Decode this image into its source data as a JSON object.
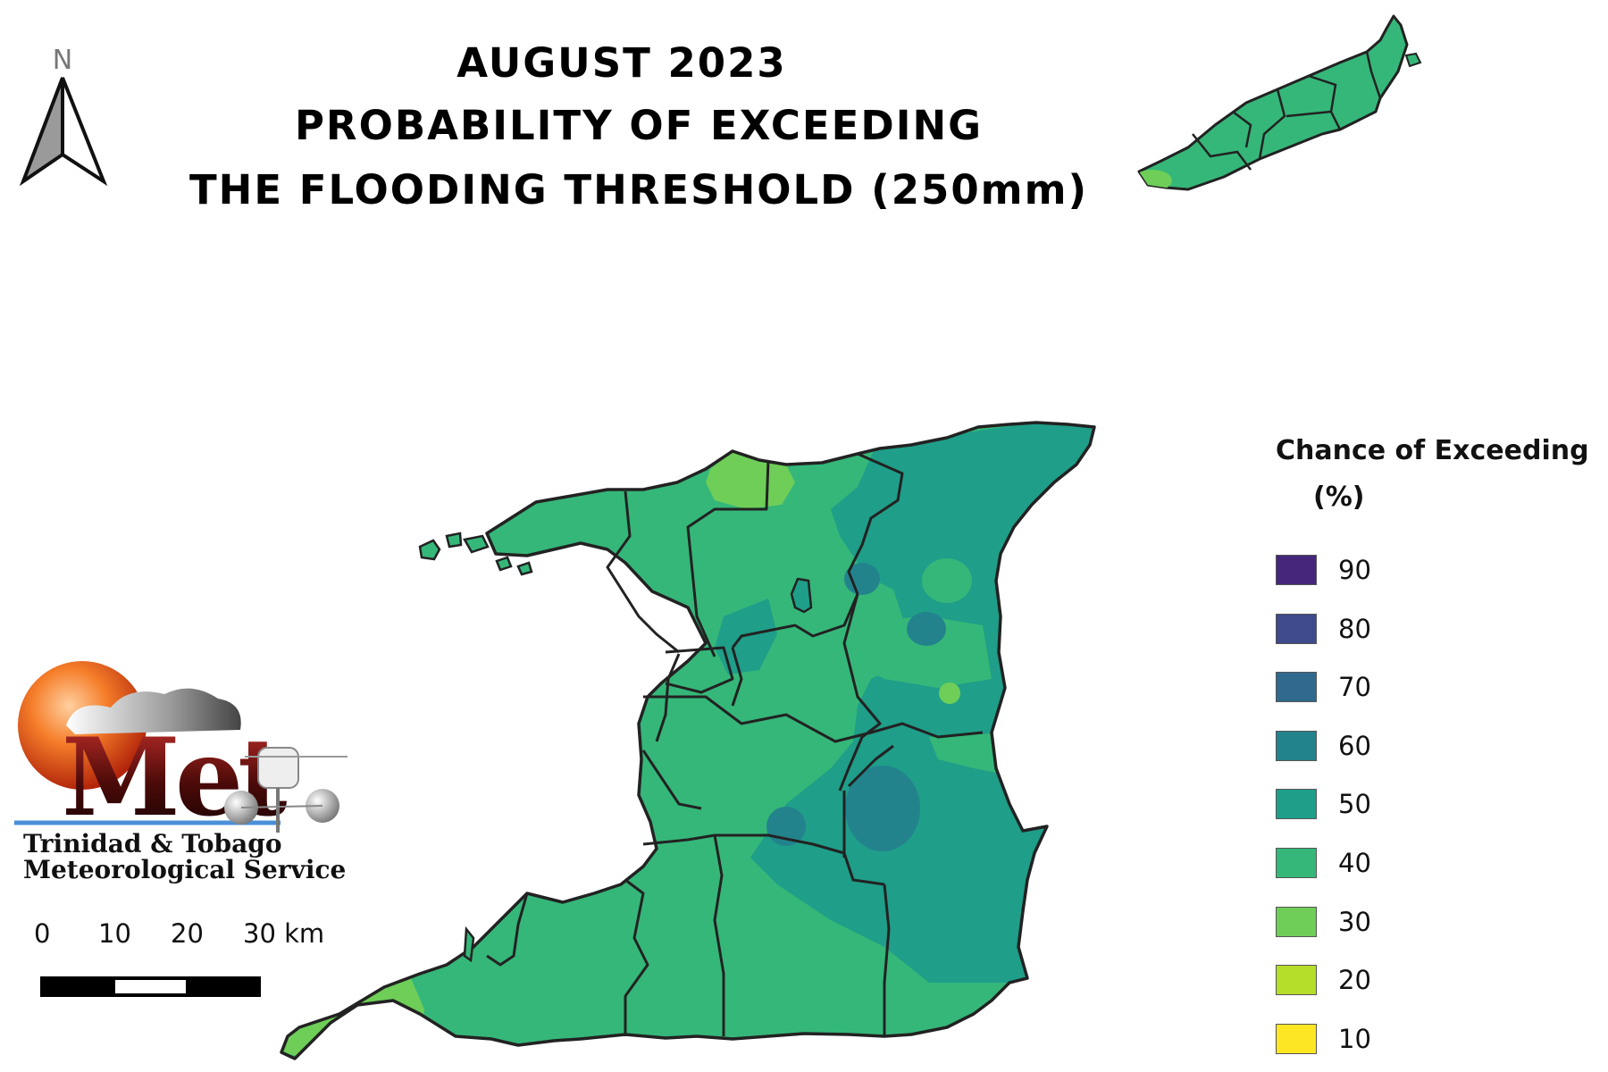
{
  "title": {
    "line1": "AUGUST 2023",
    "line2": "PROBABILITY OF EXCEEDING",
    "line3": "THE FLOODING THRESHOLD (250mm)"
  },
  "north_arrow": {
    "label": "N"
  },
  "legend": {
    "title_line1": "Chance of Exceeding",
    "title_line2": "(%)",
    "items": [
      {
        "label": "90",
        "color": "#46267a"
      },
      {
        "label": "80",
        "color": "#3e4a8b"
      },
      {
        "label": "70",
        "color": "#2f6a8e"
      },
      {
        "label": "60",
        "color": "#23838d"
      },
      {
        "label": "50",
        "color": "#1f9e89"
      },
      {
        "label": "40",
        "color": "#35b779"
      },
      {
        "label": "30",
        "color": "#6ece58"
      },
      {
        "label": "20",
        "color": "#b5de2b"
      },
      {
        "label": "10",
        "color": "#fde725"
      }
    ]
  },
  "logo": {
    "wordmark": "Met",
    "org_line1": "Trinidad & Tobago",
    "org_line2": "Meteorological Service"
  },
  "scale": {
    "labels": [
      "0",
      "10",
      "20",
      "30 km"
    ]
  },
  "map": {
    "base_color": "#35b779",
    "higher_color": "#1f9e89",
    "highest_color": "#23838d",
    "lower_color": "#6ece58",
    "outline_color": "#222222"
  }
}
